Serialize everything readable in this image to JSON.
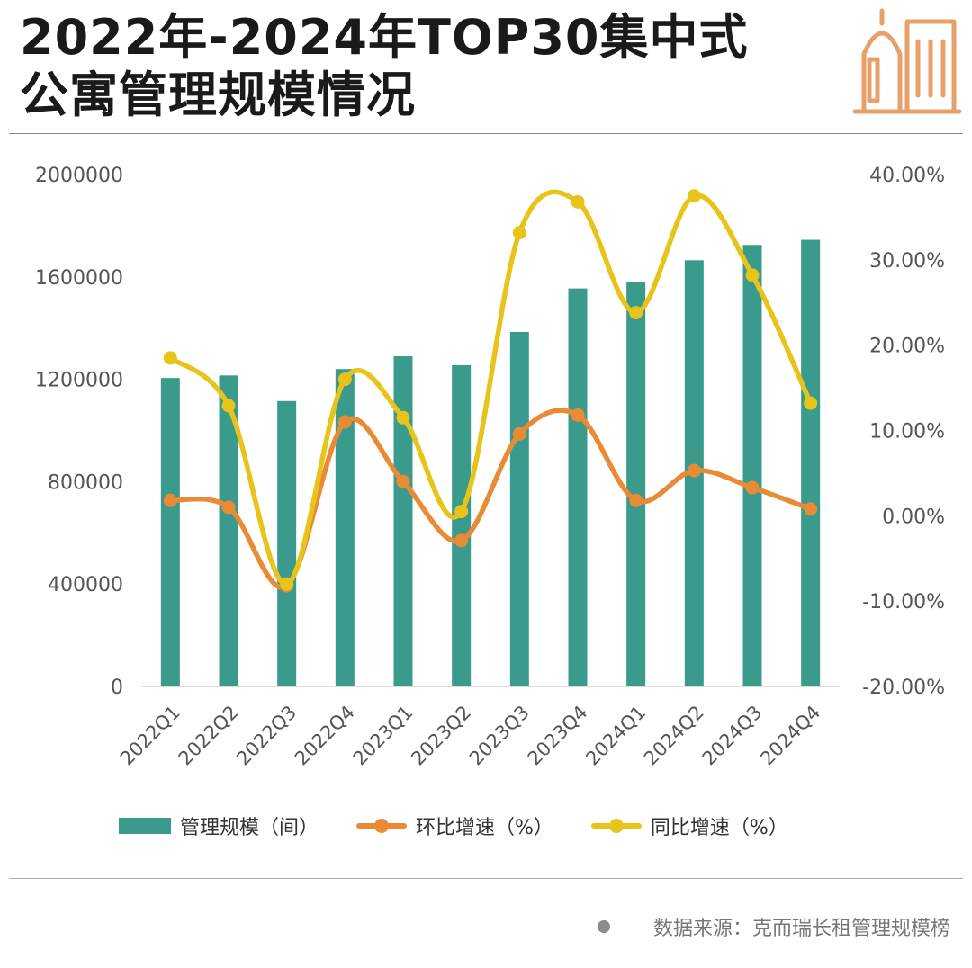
{
  "page": {
    "title_line1": "2022年-2024年TOP30集中式",
    "title_line2": "公寓管理规模情况",
    "source_text": "数据来源：克而瑞长租管理规模榜",
    "icon_color": "#E8A06A"
  },
  "colors": {
    "bar": "#3A9A8C",
    "qoq": "#E98B35",
    "yoy": "#E8C31A",
    "axis_text": "#555555"
  },
  "chart_data": {
    "type": "bar+line",
    "categories": [
      "2022Q1",
      "2022Q2",
      "2022Q3",
      "2022Q4",
      "2023Q1",
      "2023Q2",
      "2023Q3",
      "2023Q4",
      "2024Q1",
      "2024Q2",
      "2024Q3",
      "2024Q4"
    ],
    "left_axis": {
      "ylim": [
        0,
        2000000
      ],
      "ticks": [
        0,
        400000,
        800000,
        1200000,
        1600000,
        2000000
      ],
      "tick_labels": [
        "0",
        "400000",
        "800000",
        "1200000",
        "1600000",
        "2000000"
      ]
    },
    "right_axis": {
      "ylim": [
        -20,
        40
      ],
      "ticks": [
        -20,
        -10,
        0,
        10,
        20,
        30,
        40
      ],
      "tick_labels": [
        "-20.00%",
        "-10.00%",
        "0.00%",
        "10.00%",
        "20.00%",
        "30.00%",
        "40.00%"
      ]
    },
    "series": [
      {
        "name": "管理规模（间）",
        "kind": "bar",
        "axis": "left",
        "values": [
          1205000,
          1215000,
          1115000,
          1240000,
          1290000,
          1255000,
          1385000,
          1555000,
          1580000,
          1665000,
          1725000,
          1745000
        ]
      },
      {
        "name": "环比增速（%）",
        "kind": "line",
        "axis": "right",
        "values": [
          1.8,
          1.0,
          -8.2,
          11.0,
          4.0,
          -2.9,
          9.6,
          11.8,
          1.8,
          5.3,
          3.3,
          0.8
        ]
      },
      {
        "name": "同比增速（%）",
        "kind": "line",
        "axis": "right",
        "values": [
          18.5,
          12.9,
          -8.0,
          16.0,
          11.5,
          0.5,
          33.2,
          36.8,
          23.8,
          37.5,
          28.2,
          13.2
        ]
      }
    ],
    "grid": false,
    "legend_position": "bottom"
  }
}
